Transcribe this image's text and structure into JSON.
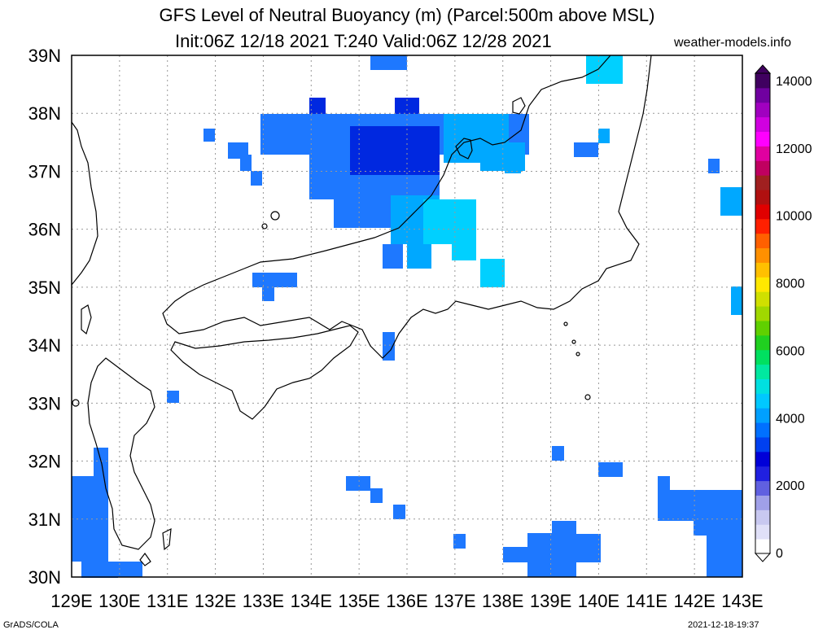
{
  "title": {
    "line1": "GFS Level of Neutral Buoyancy (m) (Parcel:500m above MSL)",
    "line2": "Init:06Z 12/18 2021 T:240 Valid:06Z 12/28 2021"
  },
  "credit": "weather-models.info",
  "footer": {
    "left": "GrADS/COLA",
    "right": "2021-12-18-19:37"
  },
  "axes": {
    "lon_labels": [
      "129E",
      "130E",
      "131E",
      "132E",
      "133E",
      "134E",
      "135E",
      "136E",
      "137E",
      "138E",
      "139E",
      "140E",
      "141E",
      "142E",
      "143E"
    ],
    "lat_labels": [
      "39N",
      "38N",
      "37N",
      "36N",
      "35N",
      "34N",
      "33N",
      "32N",
      "31N",
      "30N"
    ]
  },
  "colorbar": {
    "labels": [
      "0",
      "2000",
      "4000",
      "6000",
      "8000",
      "10000",
      "12000",
      "14000"
    ],
    "colors": [
      "#ffffff",
      "#e0e0f8",
      "#c8c8f0",
      "#a0a0e8",
      "#6060e0",
      "#2020e0",
      "#0000d8",
      "#0040f0",
      "#0070ff",
      "#00a0ff",
      "#00c8ff",
      "#00e0e0",
      "#00e8a0",
      "#00e060",
      "#20d020",
      "#60d000",
      "#a0d800",
      "#d0e000",
      "#ffe800",
      "#ffc000",
      "#ff9000",
      "#ff6000",
      "#ff2000",
      "#e00000",
      "#b01010",
      "#a02020",
      "#c00060",
      "#e000a0",
      "#ff00ff",
      "#d000e0",
      "#a000c0",
      "#7000a0",
      "#400060"
    ]
  },
  "map_style": {
    "land_color": "#ffffff",
    "coast_color": "#000000",
    "grid_color": "#999999"
  }
}
